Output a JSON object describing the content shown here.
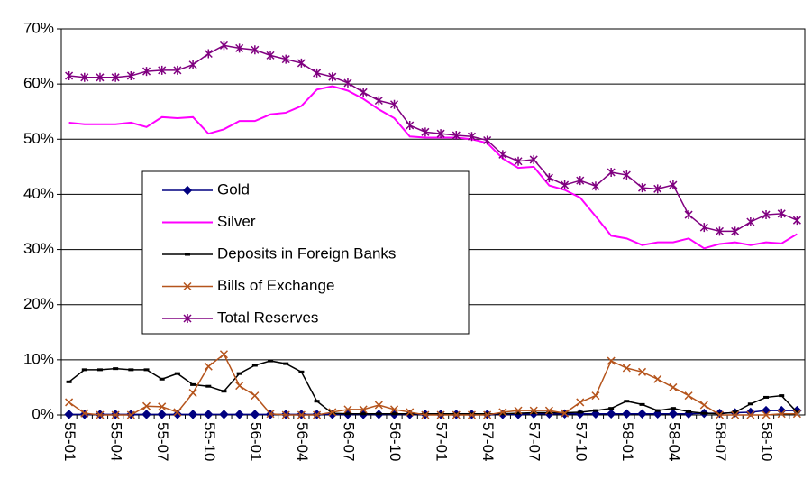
{
  "chart_data": {
    "type": "line",
    "categories": [
      "55-01",
      null,
      null,
      "55-04",
      null,
      null,
      "55-07",
      null,
      null,
      "55-10",
      null,
      null,
      "56-01",
      null,
      null,
      "56-04",
      null,
      null,
      "56-07",
      null,
      null,
      "56-10",
      null,
      null,
      "57-01",
      null,
      null,
      "57-04",
      null,
      null,
      "57-07",
      null,
      null,
      "57-10",
      null,
      null,
      "58-01",
      null,
      null,
      "58-04",
      null,
      null,
      "58-07",
      null,
      null,
      "58-10",
      null,
      null
    ],
    "ylim": [
      0,
      70
    ],
    "yticks": [
      {
        "value": 0,
        "label": "0%"
      },
      {
        "value": 10,
        "label": "10%"
      },
      {
        "value": 20,
        "label": "20%"
      },
      {
        "value": 30,
        "label": "30%"
      },
      {
        "value": 40,
        "label": "40%"
      },
      {
        "value": 50,
        "label": "50%"
      },
      {
        "value": 60,
        "label": "60%"
      },
      {
        "value": 70,
        "label": "70%"
      }
    ],
    "grid": true,
    "series": [
      {
        "name": "Gold",
        "color": "#000080",
        "marker": "diamond",
        "values": [
          0.1,
          0.1,
          0.1,
          0.1,
          0.1,
          0.1,
          0.1,
          0.1,
          0.1,
          0.1,
          0.1,
          0.1,
          0.1,
          0.1,
          0.1,
          0.1,
          0.1,
          0.1,
          0.1,
          0.1,
          0.1,
          0.1,
          0.1,
          0.1,
          0.1,
          0.1,
          0.1,
          0.1,
          0.1,
          0.1,
          0.2,
          0.2,
          0.2,
          0.2,
          0.2,
          0.2,
          0.2,
          0.2,
          0.2,
          0.2,
          0.2,
          0.3,
          0.3,
          0.4,
          0.5,
          0.8,
          0.8,
          0.8
        ]
      },
      {
        "name": "Silver",
        "color": "#ff00ff",
        "marker": "none",
        "values": [
          53,
          52.7,
          52.7,
          52.7,
          53,
          52.2,
          54,
          53.8,
          54,
          51,
          51.8,
          53.3,
          53.3,
          54.5,
          54.8,
          56,
          59,
          59.6,
          58.8,
          57.3,
          55.4,
          53.8,
          50.5,
          50.3,
          50.3,
          50.3,
          50,
          49.3,
          46.5,
          44.8,
          45,
          41.6,
          40.8,
          39.4,
          36,
          32.5,
          32,
          30.8,
          31.3,
          31.3,
          32,
          30.2,
          31,
          31.3,
          30.8,
          31.3,
          31.1,
          32.8
        ]
      },
      {
        "name": "Deposits in Foreign Banks",
        "color": "#000000",
        "marker": "dash",
        "values": [
          6,
          8.2,
          8.2,
          8.4,
          8.2,
          8.2,
          6.5,
          7.5,
          5.5,
          5.2,
          4.3,
          7.5,
          9,
          9.8,
          9.3,
          7.8,
          2.5,
          0.3,
          0.2,
          0.2,
          0.2,
          0.2,
          0.2,
          0.2,
          0.2,
          0.2,
          0.2,
          0.2,
          0.2,
          0.3,
          0.4,
          0.4,
          0.4,
          0.5,
          0.8,
          1.2,
          2.5,
          1.9,
          0.8,
          1.2,
          0.6,
          0.3,
          0.2,
          0.5,
          2,
          3.2,
          3.5,
          0.5
        ]
      },
      {
        "name": "Bills of Exchange",
        "color": "#b5541c",
        "marker": "x",
        "values": [
          2.3,
          0.3,
          0,
          0,
          0,
          1.6,
          1.5,
          0.5,
          4,
          8.8,
          11,
          5.3,
          3.5,
          0.2,
          0,
          0,
          0,
          0.5,
          1,
          1,
          1.8,
          1,
          0.5,
          0,
          0,
          0,
          0,
          0,
          0.5,
          0.8,
          0.8,
          0.8,
          0.3,
          2.3,
          3.5,
          9.8,
          8.5,
          7.8,
          6.5,
          5,
          3.5,
          1.8,
          0,
          0,
          0,
          0,
          0.2,
          0.2
        ]
      },
      {
        "name": "Total Reserves",
        "color": "#800080",
        "marker": "star",
        "values": [
          61.5,
          61.2,
          61.2,
          61.2,
          61.5,
          62.3,
          62.5,
          62.5,
          63.5,
          65.5,
          67,
          66.5,
          66.2,
          65.2,
          64.5,
          63.8,
          62,
          61.3,
          60.2,
          58.5,
          57,
          56.3,
          52.5,
          51.3,
          51,
          50.7,
          50.5,
          49.8,
          47.2,
          46,
          46.3,
          43,
          41.7,
          42.5,
          41.5,
          44,
          43.5,
          41.2,
          41,
          41.7,
          36.3,
          34,
          33.3,
          33.3,
          35,
          36.3,
          36.5,
          35.3
        ]
      }
    ]
  }
}
